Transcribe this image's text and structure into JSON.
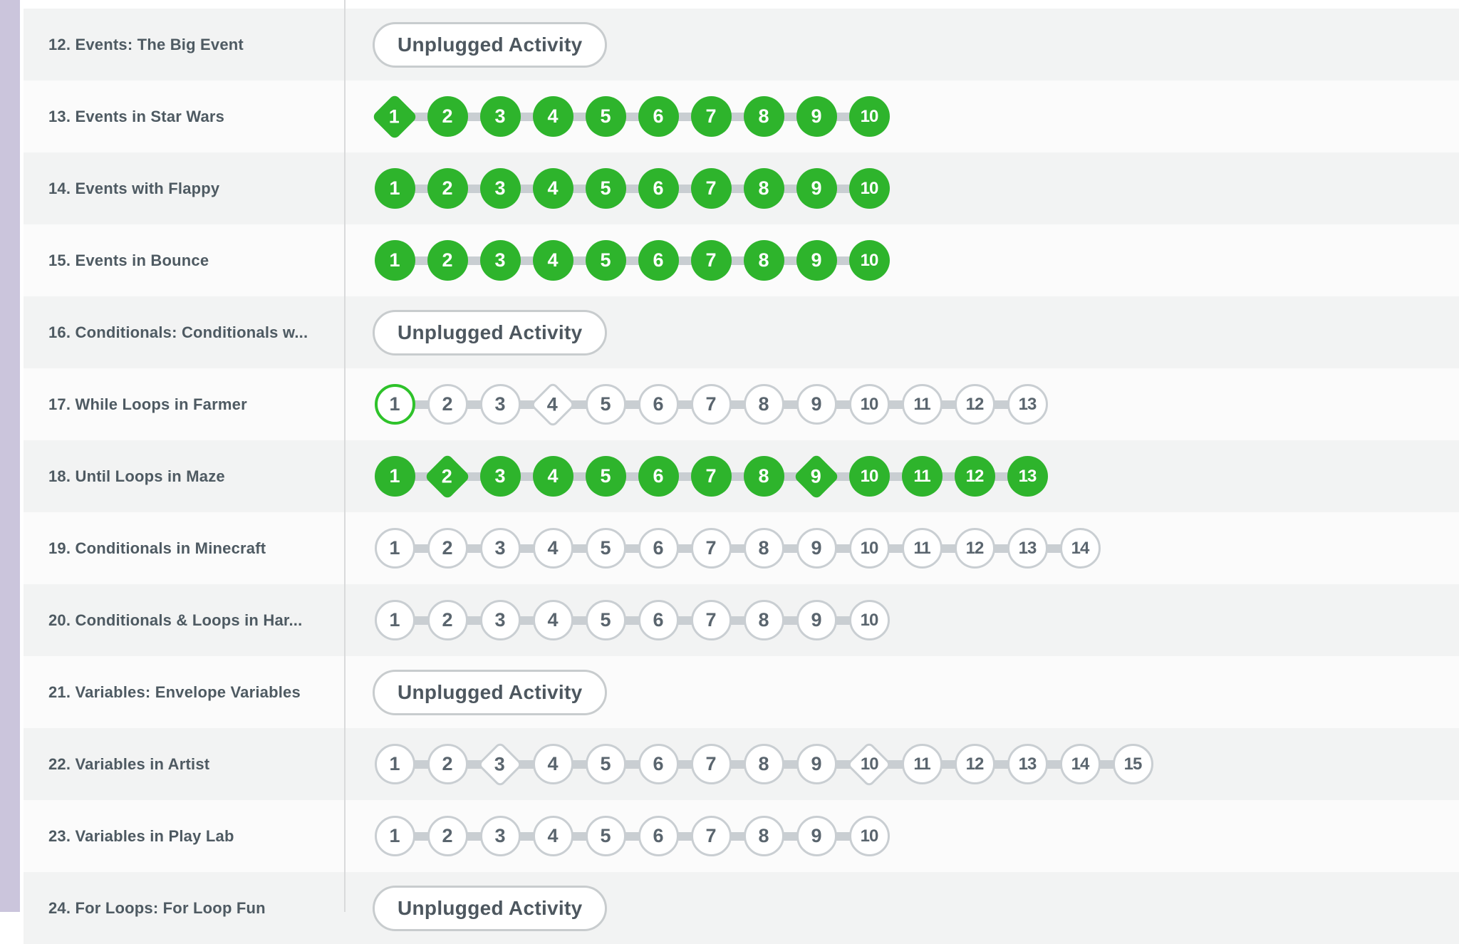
{
  "view": {
    "description": "Code.org style course lesson progress table",
    "unplugged_label": "Unplugged Activity"
  },
  "colors": {
    "progress_green": "#2eb42c",
    "current_level_green": "#2ec22a",
    "bubble_border_gray": "#c9ced2",
    "bubble_number_gray": "#5a656e",
    "row_shade_gray": "#f2f3f3",
    "row_shade_white": "#fbfbfb",
    "title_text": "#4e5a62",
    "sidebar_purple": "#cbc5dc",
    "column_divider": "#d9dadb",
    "pill_border": "#c8ccce",
    "pill_text": "#4d575f"
  },
  "lessons": [
    {
      "title": "12. Events: The Big Event",
      "shade": "gray",
      "progress": {
        "type": "unplugged",
        "label": "Unplugged Activity"
      }
    },
    {
      "title": "13. Events in Star Wars",
      "shade": "white",
      "progress": {
        "type": "levels",
        "count": 10,
        "state": "perfect",
        "diamond_positions": [
          1
        ],
        "current_position": null
      }
    },
    {
      "title": "14. Events with Flappy",
      "shade": "gray",
      "progress": {
        "type": "levels",
        "count": 10,
        "state": "perfect",
        "diamond_positions": [],
        "current_position": null
      }
    },
    {
      "title": "15. Events in Bounce",
      "shade": "white",
      "progress": {
        "type": "levels",
        "count": 10,
        "state": "perfect",
        "diamond_positions": [],
        "current_position": null
      }
    },
    {
      "title": "16. Conditionals: Conditionals w...",
      "shade": "gray",
      "progress": {
        "type": "unplugged",
        "label": "Unplugged Activity"
      }
    },
    {
      "title": "17. While Loops in Farmer",
      "shade": "white",
      "progress": {
        "type": "levels",
        "count": 13,
        "state": "not_started",
        "diamond_positions": [
          4
        ],
        "current_position": 1
      }
    },
    {
      "title": "18. Until Loops in Maze",
      "shade": "gray",
      "progress": {
        "type": "levels",
        "count": 13,
        "state": "perfect",
        "diamond_positions": [
          2,
          9
        ],
        "current_position": null
      }
    },
    {
      "title": "19. Conditionals in Minecraft",
      "shade": "white",
      "progress": {
        "type": "levels",
        "count": 14,
        "state": "not_started",
        "diamond_positions": [],
        "current_position": null
      }
    },
    {
      "title": "20. Conditionals & Loops in Har...",
      "shade": "gray",
      "progress": {
        "type": "levels",
        "count": 10,
        "state": "not_started",
        "diamond_positions": [],
        "current_position": null
      }
    },
    {
      "title": "21. Variables: Envelope Variables",
      "shade": "white",
      "progress": {
        "type": "unplugged",
        "label": "Unplugged Activity"
      }
    },
    {
      "title": "22. Variables in Artist",
      "shade": "gray",
      "progress": {
        "type": "levels",
        "count": 15,
        "state": "not_started",
        "diamond_positions": [
          3,
          10
        ],
        "current_position": null
      }
    },
    {
      "title": "23. Variables in Play Lab",
      "shade": "white",
      "progress": {
        "type": "levels",
        "count": 10,
        "state": "not_started",
        "diamond_positions": [],
        "current_position": null
      }
    },
    {
      "title": "24. For Loops: For Loop Fun",
      "shade": "gray",
      "progress": {
        "type": "unplugged",
        "label": "Unplugged Activity"
      }
    }
  ]
}
